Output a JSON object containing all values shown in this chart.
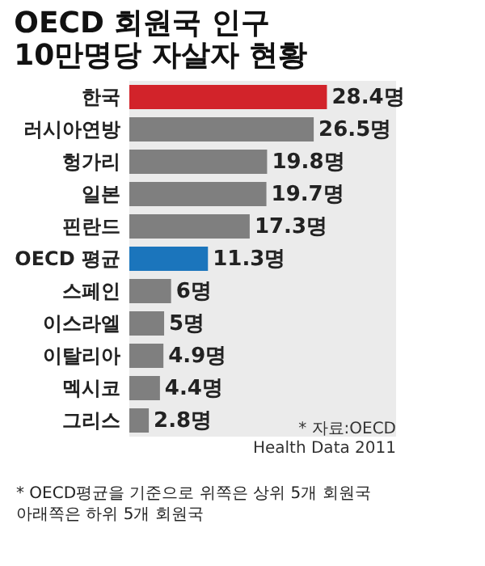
{
  "chart_data": {
    "type": "bar",
    "orientation": "horizontal",
    "title": "OECD 회원국 인구\n10만명당 자살자 현황",
    "categories": [
      "한국",
      "러시아연방",
      "헝가리",
      "일본",
      "핀란드",
      "OECD 평균",
      "스페인",
      "이스라엘",
      "이탈리아",
      "멕시코",
      "그리스"
    ],
    "values": [
      28.4,
      26.5,
      19.8,
      19.7,
      17.3,
      11.3,
      6,
      5,
      4.9,
      4.4,
      2.8
    ],
    "colors": [
      "#d2232a",
      "#7f7f7f",
      "#7f7f7f",
      "#7f7f7f",
      "#7f7f7f",
      "#1b75bc",
      "#7f7f7f",
      "#7f7f7f",
      "#7f7f7f",
      "#7f7f7f",
      "#7f7f7f"
    ],
    "value_labels": [
      "28.4명",
      "26.5명",
      "19.8명",
      "19.7명",
      "17.3명",
      "11.3명",
      "6명",
      "5명",
      "4.9명",
      "4.4명",
      "2.8명"
    ],
    "annotations": [
      "* 자료:OECD\nHealth Data 2011",
      "* OECD평균을 기준으로 위쪽은 상위 5개 회원국\n아래쪽은 하위 5개 회원국"
    ]
  }
}
